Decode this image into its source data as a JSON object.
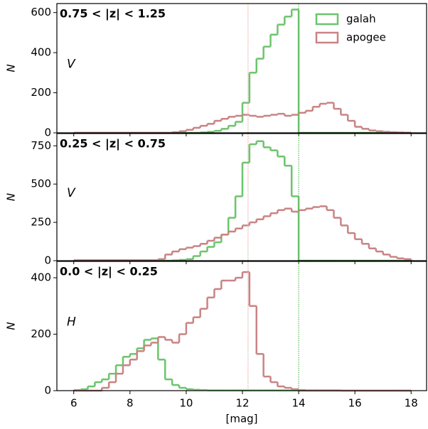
{
  "chart_data": [
    {
      "type": "histogram",
      "label": "0.75 < |z| < 1.25",
      "band": "V",
      "ylabel": "N",
      "legend": "upper right",
      "bins": [
        6,
        6.25,
        6.5,
        6.75,
        7,
        7.25,
        7.5,
        7.75,
        8,
        8.25,
        8.5,
        8.75,
        9,
        9.25,
        9.5,
        9.75,
        10,
        10.25,
        10.5,
        10.75,
        11,
        11.25,
        11.5,
        11.75,
        12,
        12.25,
        12.5,
        12.75,
        13,
        13.25,
        13.5,
        13.75,
        14,
        14.25,
        14.5,
        14.75,
        15,
        15.25,
        15.5,
        15.75,
        16,
        16.25,
        16.5,
        16.75,
        17,
        17.25,
        17.5,
        17.75,
        18
      ],
      "xlim": [
        5.4,
        18.55
      ],
      "xticks": [
        6,
        8,
        10,
        12,
        14,
        16,
        18
      ],
      "ylim": [
        0,
        645
      ],
      "yticks": [
        0,
        200,
        400,
        600
      ],
      "vlines": [
        {
          "x": 12.2,
          "color": "#e8a8a8"
        },
        {
          "x": 14.0,
          "color": "#5cb85c"
        }
      ],
      "series": [
        {
          "name": "galah",
          "color": "#6cc46c",
          "values": [
            0,
            0,
            0,
            0,
            0,
            0,
            0,
            0,
            0,
            0,
            0,
            0,
            0,
            0,
            0,
            0,
            0,
            0,
            2,
            5,
            10,
            20,
            35,
            55,
            150,
            300,
            370,
            430,
            490,
            540,
            580,
            615,
            0,
            0,
            0,
            0,
            0,
            0,
            0,
            0,
            0,
            0,
            0,
            0,
            0,
            0,
            0,
            0
          ]
        },
        {
          "name": "apogee",
          "color": "#c98383",
          "values": [
            0,
            0,
            0,
            0,
            0,
            0,
            0,
            0,
            0,
            0,
            0,
            0,
            0,
            0,
            3,
            8,
            15,
            25,
            35,
            45,
            60,
            70,
            80,
            85,
            90,
            85,
            80,
            85,
            90,
            95,
            85,
            90,
            100,
            110,
            130,
            145,
            150,
            120,
            90,
            60,
            30,
            20,
            12,
            8,
            5,
            3,
            2,
            1
          ]
        }
      ]
    },
    {
      "type": "histogram",
      "label": "0.25 < |z| < 0.75",
      "band": "V",
      "ylabel": "N",
      "bins": [
        6,
        6.25,
        6.5,
        6.75,
        7,
        7.25,
        7.5,
        7.75,
        8,
        8.25,
        8.5,
        8.75,
        9,
        9.25,
        9.5,
        9.75,
        10,
        10.25,
        10.5,
        10.75,
        11,
        11.25,
        11.5,
        11.75,
        12,
        12.25,
        12.5,
        12.75,
        13,
        13.25,
        13.5,
        13.75,
        14,
        14.25,
        14.5,
        14.75,
        15,
        15.25,
        15.5,
        15.75,
        16,
        16.25,
        16.5,
        16.75,
        17,
        17.25,
        17.5,
        17.75,
        18
      ],
      "xlim": [
        5.4,
        18.55
      ],
      "xticks": [
        6,
        8,
        10,
        12,
        14,
        16,
        18
      ],
      "ylim": [
        0,
        830
      ],
      "yticks": [
        0,
        250,
        500,
        750
      ],
      "vlines": [
        {
          "x": 12.2,
          "color": "#e8a8a8"
        },
        {
          "x": 14.0,
          "color": "#5cb85c"
        }
      ],
      "series": [
        {
          "name": "galah",
          "color": "#6cc46c",
          "values": [
            0,
            0,
            0,
            0,
            0,
            0,
            0,
            0,
            0,
            0,
            0,
            0,
            0,
            0,
            2,
            5,
            10,
            30,
            60,
            90,
            120,
            170,
            280,
            420,
            640,
            760,
            780,
            740,
            720,
            680,
            620,
            420,
            0,
            0,
            0,
            0,
            0,
            0,
            0,
            0,
            0,
            0,
            0,
            0,
            0,
            0,
            0,
            0
          ]
        },
        {
          "name": "apogee",
          "color": "#c98383",
          "values": [
            3,
            3,
            3,
            3,
            3,
            3,
            3,
            3,
            3,
            3,
            3,
            3,
            10,
            40,
            60,
            75,
            85,
            95,
            110,
            130,
            150,
            170,
            190,
            210,
            230,
            250,
            270,
            290,
            310,
            330,
            340,
            320,
            330,
            340,
            350,
            355,
            330,
            280,
            230,
            180,
            140,
            110,
            80,
            60,
            40,
            25,
            15,
            10
          ]
        }
      ]
    },
    {
      "type": "histogram",
      "label": "0.0 < |z| < 0.25",
      "band": "H",
      "ylabel": "N",
      "xlabel": "[mag]",
      "bins": [
        6,
        6.25,
        6.5,
        6.75,
        7,
        7.25,
        7.5,
        7.75,
        8,
        8.25,
        8.5,
        8.75,
        9,
        9.25,
        9.5,
        9.75,
        10,
        10.25,
        10.5,
        10.75,
        11,
        11.25,
        11.5,
        11.75,
        12,
        12.25,
        12.5,
        12.75,
        13,
        13.25,
        13.5,
        13.75,
        14,
        14.25,
        14.5,
        14.75,
        15,
        15.25,
        15.5,
        15.75,
        16,
        16.25,
        16.5,
        16.75,
        17,
        17.25,
        17.5,
        17.75,
        18
      ],
      "xlim": [
        5.4,
        18.55
      ],
      "xticks": [
        6,
        8,
        10,
        12,
        14,
        16,
        18
      ],
      "ylim": [
        0,
        458
      ],
      "yticks": [
        0,
        200,
        400
      ],
      "vlines": [
        {
          "x": 12.2,
          "color": "#e8a8a8"
        },
        {
          "x": 14.0,
          "color": "#5cb85c"
        }
      ],
      "series": [
        {
          "name": "galah",
          "color": "#6cc46c",
          "values": [
            2,
            5,
            15,
            30,
            40,
            60,
            90,
            120,
            130,
            150,
            180,
            185,
            110,
            40,
            20,
            10,
            5,
            3,
            2,
            1,
            1,
            1,
            1,
            1,
            1,
            1,
            1,
            1,
            1,
            1,
            1,
            1,
            0,
            0,
            0,
            0,
            0,
            0,
            0,
            0,
            0,
            0,
            0,
            0,
            0,
            0,
            0,
            0
          ]
        },
        {
          "name": "apogee",
          "color": "#c98383",
          "values": [
            0,
            0,
            0,
            0,
            10,
            30,
            60,
            90,
            110,
            140,
            160,
            170,
            190,
            180,
            170,
            200,
            240,
            260,
            290,
            330,
            360,
            390,
            390,
            400,
            420,
            300,
            130,
            50,
            30,
            15,
            10,
            5,
            2,
            1,
            1,
            1,
            1,
            1,
            0,
            0,
            0,
            0,
            0,
            0,
            0,
            0,
            0,
            0
          ]
        }
      ]
    }
  ]
}
